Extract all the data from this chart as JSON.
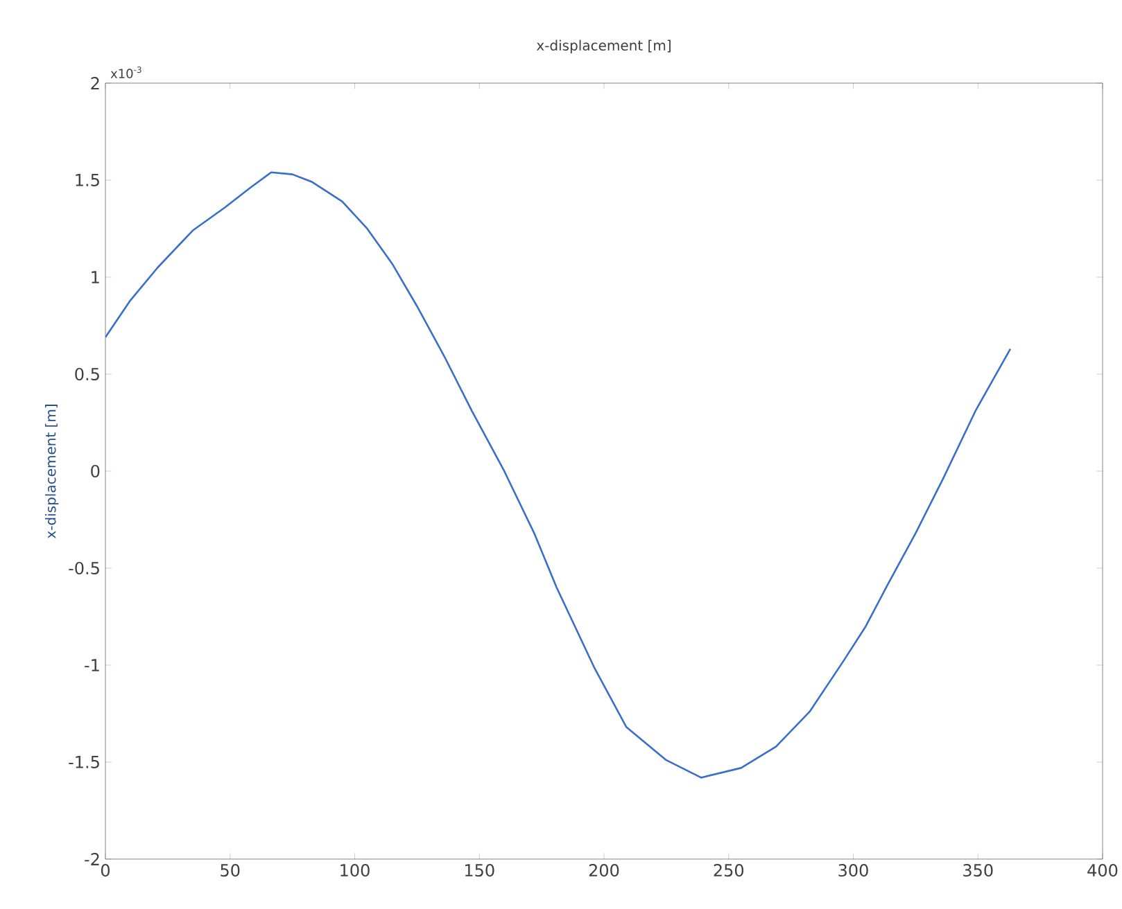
{
  "chart_data": {
    "type": "line",
    "title": "x-displacement [m]",
    "ylabel": "x-displacement [m]",
    "annotations": [
      "x10$^{-3}$"
    ],
    "x": [
      0,
      10,
      21,
      35,
      48,
      58,
      66.5,
      75,
      83,
      95,
      105,
      115,
      125,
      136,
      147,
      160,
      172,
      181,
      196,
      209,
      225,
      239,
      255,
      269,
      282.5,
      296,
      305,
      313.6,
      325,
      336,
      349,
      363
    ],
    "values": [
      0.69,
      0.88,
      1.05,
      1.24,
      1.36,
      1.46,
      1.54,
      1.53,
      1.49,
      1.39,
      1.25,
      1.07,
      0.85,
      0.59,
      0.31,
      0.0,
      -0.32,
      -0.6,
      -1.01,
      -1.32,
      -1.49,
      -1.58,
      -1.53,
      -1.42,
      -1.24,
      -0.98,
      -0.8,
      -0.59,
      -0.32,
      -0.04,
      0.31,
      0.63
    ],
    "color": "#3a6fc9",
    "xlim": [
      0,
      400
    ],
    "ylim": [
      -2,
      2
    ],
    "xticks": [
      0,
      50,
      100,
      150,
      200,
      250,
      300,
      350,
      400
    ],
    "yticks": [
      -2,
      -1.5,
      -1,
      -0.5,
      0,
      0.5,
      1,
      1.5,
      2
    ],
    "grid": false,
    "marker": "none",
    "line_style": "solid"
  }
}
